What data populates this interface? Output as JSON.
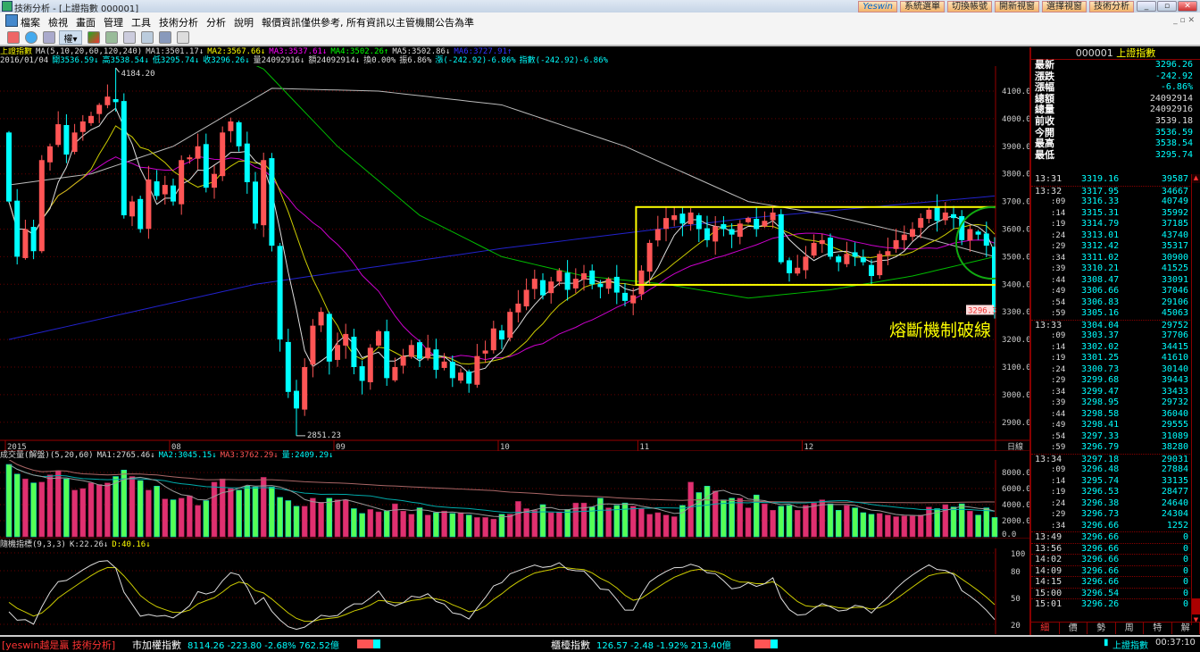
{
  "window": {
    "title": "技術分析 - [上證指數 000001]",
    "buttons": [
      "Yeswin",
      "系統選單",
      "切換帳號",
      "開新視窗",
      "選擇視窗",
      "技術分析"
    ],
    "min": "_",
    "max": "▫",
    "close": "✕"
  },
  "menu": [
    "檔案",
    "檢視",
    "畫面",
    "管理",
    "工具",
    "技術分析",
    "分析",
    "說明",
    "報價資訊僅供參考, 所有資訊以主管機關公告為準"
  ],
  "toolbar": {
    "weight_label": "權▾"
  },
  "info": {
    "line1": [
      {
        "t": "上證指數",
        "c": "y"
      },
      {
        "t": "MA(5,10,20,60,120,240)",
        "c": "w"
      },
      {
        "t": "MA1:3501.17↓",
        "c": "w"
      },
      {
        "t": "MA2:3567.66↓",
        "c": "y"
      },
      {
        "t": "MA3:3537.61↓",
        "c": "m"
      },
      {
        "t": "MA4:3502.26↑",
        "c": "g"
      },
      {
        "t": "MA5:3502.86↓",
        "c": "w"
      },
      {
        "t": "MA6:3727.91↑",
        "c": "b"
      }
    ],
    "line2": [
      {
        "t": "2016/01/04",
        "c": "w"
      },
      {
        "t": "開3536.59↓",
        "c": "c"
      },
      {
        "t": "高3538.54↓",
        "c": "c"
      },
      {
        "t": "低3295.74↓",
        "c": "c"
      },
      {
        "t": "收3296.26↓",
        "c": "c"
      },
      {
        "t": "量24092916↓",
        "c": "w"
      },
      {
        "t": "額24092914↓",
        "c": "w"
      },
      {
        "t": "換0.00%",
        "c": "w"
      },
      {
        "t": "振6.86%",
        "c": "w"
      },
      {
        "t": "漲(-242.92)-6.86%",
        "c": "c"
      },
      {
        "t": "指數(-242.92)-6.86%",
        "c": "c"
      }
    ]
  },
  "volume_header": [
    {
      "t": "成交量(解盤)(5,20,60)",
      "c": "w"
    },
    {
      "t": "MA1:2765.46↓",
      "c": "w"
    },
    {
      "t": "MA2:3045.15↓",
      "c": "c"
    },
    {
      "t": "MA3:3762.29↓",
      "c": "r"
    },
    {
      "t": "量:2409.29↓",
      "c": "c"
    }
  ],
  "kd_header": [
    {
      "t": "隨機指標(9,3,3)",
      "c": "w"
    },
    {
      "t": "K:22.26↓",
      "c": "w"
    },
    {
      "t": "D:40.16↓",
      "c": "y"
    }
  ],
  "chart_data": {
    "type": "candlestick",
    "period_label": "日線",
    "ylim": [
      2800,
      4200
    ],
    "yticks": [
      "4100.0",
      "4000.0",
      "3900.0",
      "3800.0",
      "3700.0",
      "3600.0",
      "3500.0",
      "3400.0",
      "3300.0",
      "3200.0",
      "3100.0",
      "3000.0",
      "2900.0"
    ],
    "last_price_tag": "3296.3",
    "high_label": {
      "text": "4184.20",
      "index": 13,
      "value": 4184.2
    },
    "low_label": {
      "text": "2851.23",
      "index": 35,
      "value": 2851.23
    },
    "date_labels": [
      {
        "t": "2015",
        "i": 0
      },
      {
        "t": "08",
        "i": 20
      },
      {
        "t": "09",
        "i": 40
      },
      {
        "t": "10",
        "i": 60
      },
      {
        "t": "11",
        "i": 77
      },
      {
        "t": "12",
        "i": 97
      }
    ],
    "first_open": 3950,
    "closes": [
      3700,
      3500,
      3600,
      3520,
      3850,
      3900,
      3980,
      3870,
      3950,
      3990,
      4010,
      4050,
      4080,
      4060,
      3650,
      3700,
      3600,
      3780,
      3720,
      3760,
      3700,
      3850,
      3860,
      3900,
      3750,
      3800,
      3950,
      3990,
      3900,
      3770,
      3620,
      3850,
      3540,
      3200,
      3010,
      2950,
      3100,
      3250,
      3300,
      3120,
      3180,
      3220,
      3100,
      3050,
      3170,
      3230,
      3060,
      3100,
      3140,
      3180,
      3130,
      3170,
      3090,
      3120,
      3060,
      3080,
      3040,
      3140,
      3160,
      3240,
      3200,
      3300,
      3330,
      3380,
      3420,
      3360,
      3410,
      3450,
      3380,
      3420,
      3440,
      3400,
      3390,
      3420,
      3370,
      3340,
      3360,
      3450,
      3550,
      3600,
      3640,
      3650,
      3620,
      3660,
      3600,
      3560,
      3610,
      3600,
      3580,
      3620,
      3640,
      3600,
      3630,
      3660,
      3480,
      3440,
      3460,
      3500,
      3550,
      3560,
      3500,
      3480,
      3510,
      3500,
      3480,
      3430,
      3510,
      3520,
      3560,
      3580,
      3600,
      3640,
      3670,
      3630,
      3660,
      3640,
      3560,
      3600,
      3580,
      3540,
      3296
    ],
    "ma60_points": [
      [
        0,
        4600
      ],
      [
        31,
        4180
      ],
      [
        40,
        3900
      ],
      [
        50,
        3650
      ],
      [
        60,
        3500
      ],
      [
        70,
        3430
      ],
      [
        80,
        3400
      ],
      [
        90,
        3350
      ],
      [
        100,
        3380
      ],
      [
        110,
        3430
      ],
      [
        120,
        3500
      ]
    ],
    "ma120_points": [
      [
        0,
        3760
      ],
      [
        10,
        3800
      ],
      [
        20,
        3900
      ],
      [
        32,
        4110
      ],
      [
        45,
        4100
      ],
      [
        60,
        4050
      ],
      [
        75,
        3900
      ],
      [
        90,
        3700
      ],
      [
        100,
        3650
      ],
      [
        110,
        3580
      ],
      [
        120,
        3500
      ]
    ],
    "ma240_points": [
      [
        0,
        3200
      ],
      [
        30,
        3400
      ],
      [
        60,
        3530
      ],
      [
        90,
        3640
      ],
      [
        120,
        3720
      ]
    ],
    "volumes": [
      9000,
      7800,
      7200,
      6700,
      6800,
      7700,
      8200,
      7200,
      5800,
      6000,
      6700,
      6500,
      6700,
      7500,
      8300,
      7500,
      7000,
      5800,
      6300,
      4700,
      4600,
      4800,
      5100,
      3900,
      4500,
      6800,
      7200,
      6000,
      5800,
      6300,
      6200,
      7400,
      6200,
      4900,
      4500,
      3800,
      3800,
      4800,
      4300,
      4800,
      4600,
      4600,
      3500,
      2900,
      3400,
      3100,
      3200,
      4100,
      3200,
      2800,
      3600,
      2700,
      3000,
      3200,
      2900,
      3000,
      2700,
      2400,
      2400,
      2200,
      2800,
      2800,
      4400,
      3500,
      3300,
      4000,
      3000,
      3100,
      3400,
      4200,
      4200,
      3700,
      4800,
      3600,
      3900,
      4200,
      3800,
      3500,
      2800,
      3000,
      2700,
      2500,
      3900,
      6800,
      5500,
      6300,
      5700,
      4600,
      4800,
      4800,
      3600,
      5200,
      4100,
      3300,
      3800,
      3900,
      3300,
      3900,
      4200,
      4600,
      4100,
      3300,
      3900,
      3600,
      3000,
      2800,
      2900,
      2700,
      2500,
      2600,
      2600,
      2700,
      3700,
      3500,
      4000,
      3700,
      4100,
      3200,
      2700,
      3600,
      2400
    ],
    "volume_yticks": [
      "8000.0",
      "6000.0",
      "4000.0",
      "2000.0",
      "0.0"
    ],
    "kd_yticks": [
      "100",
      "80",
      "50",
      "20"
    ],
    "box": {
      "from_index": 77,
      "to_index": 120,
      "top": 3680,
      "bottom": 3398
    },
    "annotation": "熔斷機制破線"
  },
  "quote": {
    "code": "000001",
    "name": "上證指數",
    "rows": [
      {
        "l": "最新",
        "v": "3296.26",
        "c": "c"
      },
      {
        "l": "漲跌",
        "v": "-242.92",
        "c": "c"
      },
      {
        "l": "漲幅",
        "v": "-6.86%",
        "c": "c"
      },
      {
        "l": "總額",
        "v": "24092914",
        "c": "w"
      },
      {
        "l": "總量",
        "v": "24092916",
        "c": "w"
      },
      {
        "l": "前收",
        "v": "3539.18",
        "c": "w"
      },
      {
        "l": "今開",
        "v": "3536.59",
        "c": "c"
      },
      {
        "l": "最高",
        "v": "3538.54",
        "c": "c"
      },
      {
        "l": "最低",
        "v": "3295.74",
        "c": "c"
      }
    ]
  },
  "ticks": [
    [
      "13:31",
      "3319.16",
      "39587"
    ],
    [
      "13:32",
      "3317.95",
      "34667"
    ],
    [
      ":09",
      "3316.33",
      "40749"
    ],
    [
      ":14",
      "3315.31",
      "35992"
    ],
    [
      ":19",
      "3314.79",
      "37185"
    ],
    [
      ":24",
      "3313.01",
      "43740"
    ],
    [
      ":29",
      "3312.42",
      "35317"
    ],
    [
      ":34",
      "3311.02",
      "30900"
    ],
    [
      ":39",
      "3310.21",
      "41525"
    ],
    [
      ":44",
      "3308.47",
      "33091"
    ],
    [
      ":49",
      "3306.66",
      "37046"
    ],
    [
      ":54",
      "3306.83",
      "29106",
      "r"
    ],
    [
      ":59",
      "3305.16",
      "45063"
    ],
    [
      "13:33",
      "3304.04",
      "29752"
    ],
    [
      ":09",
      "3303.37",
      "37706"
    ],
    [
      ":14",
      "3302.02",
      "34415"
    ],
    [
      ":19",
      "3301.25",
      "41610"
    ],
    [
      ":24",
      "3300.73",
      "30140"
    ],
    [
      ":29",
      "3299.68",
      "39443"
    ],
    [
      ":34",
      "3299.47",
      "33433"
    ],
    [
      ":39",
      "3298.95",
      "29732"
    ],
    [
      ":44",
      "3298.58",
      "36040"
    ],
    [
      ":49",
      "3298.41",
      "29555"
    ],
    [
      ":54",
      "3297.33",
      "31089"
    ],
    [
      ":59",
      "3296.79",
      "38280"
    ],
    [
      "13:34",
      "3297.18",
      "29031",
      "r"
    ],
    [
      ":09",
      "3296.48",
      "27884"
    ],
    [
      ":14",
      "3295.74",
      "33135"
    ],
    [
      ":19",
      "3296.53",
      "28477",
      "r"
    ],
    [
      ":24",
      "3296.38",
      "24640"
    ],
    [
      ":29",
      "3296.73",
      "24304",
      "r"
    ],
    [
      ":34",
      "3296.66",
      "1252"
    ],
    [
      "13:49",
      "3296.66",
      "0",
      "w"
    ],
    [
      "13:56",
      "3296.66",
      "0",
      "w"
    ],
    [
      "14:02",
      "3296.66",
      "0",
      "w"
    ],
    [
      "14:09",
      "3296.66",
      "0",
      "w"
    ],
    [
      "14:15",
      "3296.66",
      "0",
      "w"
    ],
    [
      "15:00",
      "3296.54",
      "0"
    ],
    [
      "15:01",
      "3296.26",
      "0"
    ]
  ],
  "panel_tabs": [
    "細",
    "價",
    "勢",
    "周",
    "特",
    "解"
  ],
  "status": {
    "brand": "[yeswin越是贏 技術分析]",
    "twse_name": "市加權指數",
    "twse_vals": "8114.26 -223.80 -2.68% 762.52億",
    "otc_name": "櫃檯指數",
    "otc_vals": "126.57 -2.48 -1.92% 213.40億",
    "current": "上證指數",
    "clock": "00:37:10"
  }
}
